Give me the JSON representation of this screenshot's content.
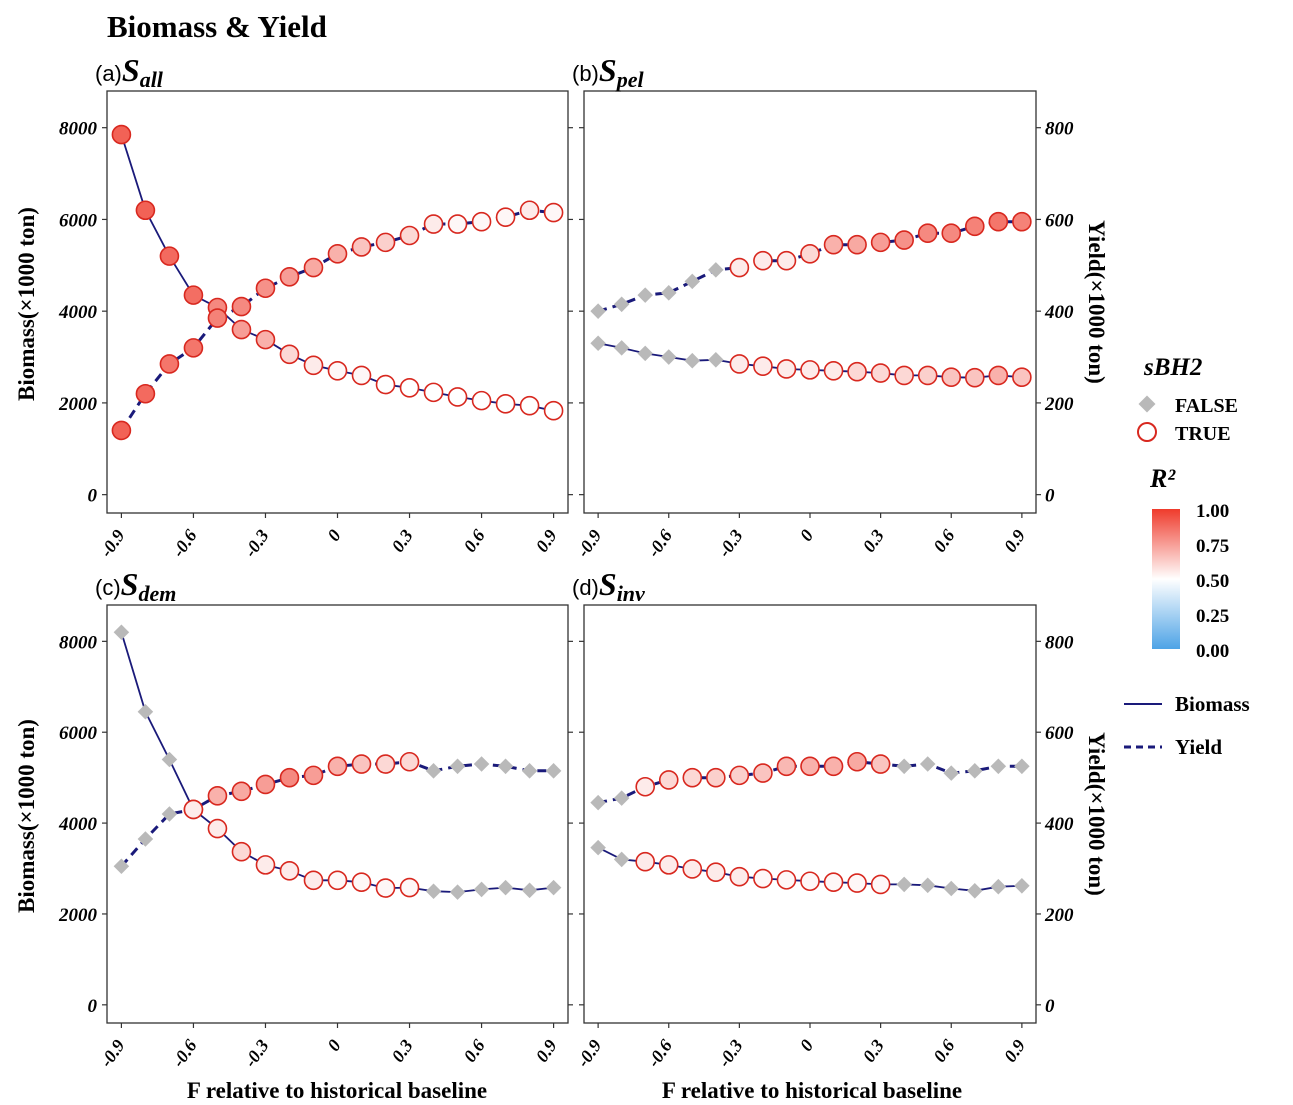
{
  "figure": {
    "title": "Biomass & Yield",
    "xlabel": "F relative to historical baseline",
    "ylabel_left": "Biomass(×1000 ton)",
    "ylabel_right": "Yield(×1000 ton)"
  },
  "legend": {
    "shape_title": "sBH2",
    "shape_items": [
      "FALSE",
      "TRUE"
    ],
    "color_title": "R²",
    "color_ticks": [
      "1.00",
      "0.75",
      "0.50",
      "0.25",
      "0.00"
    ],
    "line_items": [
      "Biomass",
      "Yield"
    ]
  },
  "colors": {
    "line": "#1a1a7a",
    "false_marker": "#b9b9b9",
    "true_edge": "#d8281f",
    "high": "#ef3b2c",
    "mid": "#ffffff",
    "low": "#4da3e6"
  },
  "chart_data": [
    {
      "type": "line",
      "panel_tag": "(a)",
      "panel_symbol": "S",
      "panel_subscript": "all",
      "x": [
        -0.9,
        -0.8,
        -0.7,
        -0.6,
        -0.5,
        -0.4,
        -0.3,
        -0.2,
        -0.1,
        0,
        0.1,
        0.2,
        0.3,
        0.4,
        0.5,
        0.6,
        0.7,
        0.8,
        0.9
      ],
      "x_ticks": [
        "-0.9",
        "-0.6",
        "-0.3",
        "0",
        "0.3",
        "0.6",
        "0.9"
      ],
      "left_axis": {
        "ylim": [
          -400,
          8800
        ],
        "ticks": [
          "0",
          "2000",
          "4000",
          "6000",
          "8000"
        ],
        "show_ticklabels": true
      },
      "right_axis": {
        "ylim": [
          -40,
          880
        ],
        "ticks": [
          "0",
          "200",
          "400",
          "600",
          "800"
        ],
        "show_ticklabels": false
      },
      "series": [
        {
          "name": "Biomass",
          "axis": "left",
          "linestyle": "solid",
          "values": [
            7850,
            6200,
            5200,
            4350,
            4080,
            3600,
            3380,
            3060,
            2820,
            2700,
            2600,
            2400,
            2330,
            2230,
            2130,
            2050,
            1980,
            1940,
            1830
          ],
          "sbh2": [
            true,
            true,
            true,
            true,
            true,
            true,
            true,
            true,
            true,
            true,
            true,
            true,
            true,
            true,
            true,
            true,
            true,
            true,
            true
          ],
          "r2": [
            0.9,
            0.9,
            0.88,
            0.87,
            0.8,
            0.75,
            0.7,
            0.6,
            0.55,
            0.52,
            0.52,
            0.5,
            0.5,
            0.5,
            0.5,
            0.5,
            0.5,
            0.5,
            0.5
          ]
        },
        {
          "name": "Yield",
          "axis": "right",
          "linestyle": "dashed",
          "values": [
            140,
            220,
            285,
            320,
            385,
            410,
            450,
            475,
            495,
            525,
            540,
            550,
            565,
            590,
            590,
            595,
            605,
            620,
            615
          ],
          "sbh2": [
            true,
            true,
            true,
            true,
            true,
            true,
            true,
            true,
            true,
            true,
            true,
            true,
            true,
            true,
            true,
            true,
            true,
            true,
            true
          ],
          "r2": [
            0.9,
            0.88,
            0.85,
            0.85,
            0.82,
            0.8,
            0.78,
            0.75,
            0.72,
            0.7,
            0.65,
            0.62,
            0.6,
            0.55,
            0.52,
            0.52,
            0.52,
            0.55,
            0.52
          ]
        }
      ]
    },
    {
      "type": "line",
      "panel_tag": "(b)",
      "panel_symbol": "S",
      "panel_subscript": "pel",
      "x": [
        -0.9,
        -0.8,
        -0.7,
        -0.6,
        -0.5,
        -0.4,
        -0.3,
        -0.2,
        -0.1,
        0,
        0.1,
        0.2,
        0.3,
        0.4,
        0.5,
        0.6,
        0.7,
        0.8,
        0.9
      ],
      "x_ticks": [
        "-0.9",
        "-0.6",
        "-0.3",
        "0",
        "0.3",
        "0.6",
        "0.9"
      ],
      "left_axis": {
        "ylim": [
          -400,
          8800
        ],
        "ticks": [
          "0",
          "2000",
          "4000",
          "6000",
          "8000"
        ],
        "show_ticklabels": false
      },
      "right_axis": {
        "ylim": [
          -40,
          880
        ],
        "ticks": [
          "0",
          "200",
          "400",
          "600",
          "800"
        ],
        "show_ticklabels": true
      },
      "series": [
        {
          "name": "Biomass",
          "axis": "left",
          "linestyle": "solid",
          "values": [
            3300,
            3200,
            3080,
            3000,
            2920,
            2940,
            2850,
            2800,
            2740,
            2720,
            2700,
            2680,
            2650,
            2600,
            2600,
            2560,
            2550,
            2600,
            2560
          ],
          "sbh2": [
            false,
            false,
            false,
            false,
            false,
            false,
            true,
            true,
            true,
            true,
            true,
            true,
            true,
            true,
            true,
            true,
            true,
            true,
            true
          ],
          "r2": [
            0,
            0,
            0,
            0,
            0,
            0,
            0.55,
            0.55,
            0.55,
            0.55,
            0.55,
            0.6,
            0.6,
            0.6,
            0.62,
            0.65,
            0.65,
            0.7,
            0.65
          ]
        },
        {
          "name": "Yield",
          "axis": "right",
          "linestyle": "dashed",
          "values": [
            400,
            415,
            435,
            440,
            465,
            490,
            495,
            510,
            510,
            525,
            545,
            545,
            550,
            555,
            570,
            570,
            585,
            595,
            595
          ],
          "sbh2": [
            false,
            false,
            false,
            false,
            false,
            false,
            true,
            true,
            true,
            true,
            true,
            true,
            true,
            true,
            true,
            true,
            true,
            true,
            true
          ],
          "r2": [
            0,
            0,
            0,
            0,
            0,
            0,
            0.55,
            0.55,
            0.55,
            0.6,
            0.7,
            0.72,
            0.75,
            0.78,
            0.8,
            0.8,
            0.82,
            0.85,
            0.82
          ]
        }
      ]
    },
    {
      "type": "line",
      "panel_tag": "(c)",
      "panel_symbol": "S",
      "panel_subscript": "dem",
      "x": [
        -0.9,
        -0.8,
        -0.7,
        -0.6,
        -0.5,
        -0.4,
        -0.3,
        -0.2,
        -0.1,
        0,
        0.1,
        0.2,
        0.3,
        0.4,
        0.5,
        0.6,
        0.7,
        0.8,
        0.9
      ],
      "x_ticks": [
        "-0.9",
        "-0.6",
        "-0.3",
        "0",
        "0.3",
        "0.6",
        "0.9"
      ],
      "left_axis": {
        "ylim": [
          -400,
          8800
        ],
        "ticks": [
          "0",
          "2000",
          "4000",
          "6000",
          "8000"
        ],
        "show_ticklabels": true
      },
      "right_axis": {
        "ylim": [
          -40,
          880
        ],
        "ticks": [
          "0",
          "200",
          "400",
          "600",
          "800"
        ],
        "show_ticklabels": false
      },
      "series": [
        {
          "name": "Biomass",
          "axis": "left",
          "linestyle": "solid",
          "values": [
            8200,
            6450,
            5400,
            4300,
            3880,
            3370,
            3080,
            2950,
            2740,
            2740,
            2700,
            2570,
            2580,
            2500,
            2480,
            2540,
            2580,
            2520,
            2580
          ],
          "sbh2": [
            false,
            false,
            false,
            true,
            true,
            true,
            true,
            true,
            true,
            true,
            true,
            true,
            true,
            false,
            false,
            false,
            false,
            false,
            false
          ],
          "r2": [
            0,
            0,
            0,
            0.6,
            0.55,
            0.6,
            0.55,
            0.55,
            0.55,
            0.52,
            0.52,
            0.52,
            0.52,
            0,
            0,
            0,
            0,
            0,
            0
          ]
        },
        {
          "name": "Yield",
          "axis": "right",
          "linestyle": "dashed",
          "values": [
            305,
            365,
            420,
            430,
            460,
            470,
            485,
            500,
            505,
            525,
            530,
            530,
            535,
            515,
            525,
            530,
            525,
            515,
            515
          ],
          "sbh2": [
            false,
            false,
            false,
            true,
            true,
            true,
            true,
            true,
            true,
            true,
            true,
            true,
            true,
            false,
            false,
            false,
            false,
            false,
            false
          ],
          "r2": [
            0,
            0,
            0,
            0.55,
            0.7,
            0.72,
            0.75,
            0.8,
            0.75,
            0.7,
            0.65,
            0.6,
            0.6,
            0,
            0,
            0,
            0,
            0,
            0
          ]
        }
      ]
    },
    {
      "type": "line",
      "panel_tag": "(d)",
      "panel_symbol": "S",
      "panel_subscript": "inv",
      "x": [
        -0.9,
        -0.8,
        -0.7,
        -0.6,
        -0.5,
        -0.4,
        -0.3,
        -0.2,
        -0.1,
        0,
        0.1,
        0.2,
        0.3,
        0.4,
        0.5,
        0.6,
        0.7,
        0.8,
        0.9
      ],
      "x_ticks": [
        "-0.9",
        "-0.6",
        "-0.3",
        "0",
        "0.3",
        "0.6",
        "0.9"
      ],
      "left_axis": {
        "ylim": [
          -400,
          8800
        ],
        "ticks": [
          "0",
          "2000",
          "4000",
          "6000",
          "8000"
        ],
        "show_ticklabels": false
      },
      "right_axis": {
        "ylim": [
          -40,
          880
        ],
        "ticks": [
          "0",
          "200",
          "400",
          "600",
          "800"
        ],
        "show_ticklabels": true
      },
      "series": [
        {
          "name": "Biomass",
          "axis": "left",
          "linestyle": "solid",
          "values": [
            3460,
            3200,
            3150,
            3080,
            2990,
            2920,
            2820,
            2780,
            2750,
            2720,
            2700,
            2680,
            2650,
            2650,
            2630,
            2560,
            2510,
            2600,
            2620
          ],
          "sbh2": [
            false,
            false,
            true,
            true,
            true,
            true,
            true,
            true,
            true,
            true,
            true,
            true,
            true,
            false,
            false,
            false,
            false,
            false,
            false
          ],
          "r2": [
            0,
            0,
            0.55,
            0.55,
            0.55,
            0.55,
            0.55,
            0.52,
            0.52,
            0.52,
            0.52,
            0.52,
            0.52,
            0,
            0,
            0,
            0,
            0,
            0
          ]
        },
        {
          "name": "Yield",
          "axis": "right",
          "linestyle": "dashed",
          "values": [
            445,
            455,
            480,
            495,
            500,
            500,
            505,
            510,
            525,
            525,
            525,
            535,
            530,
            525,
            530,
            510,
            515,
            525,
            525
          ],
          "sbh2": [
            false,
            false,
            true,
            true,
            true,
            true,
            true,
            true,
            true,
            true,
            true,
            true,
            true,
            false,
            false,
            false,
            false,
            false,
            false
          ],
          "r2": [
            0,
            0,
            0.55,
            0.6,
            0.6,
            0.62,
            0.62,
            0.65,
            0.68,
            0.7,
            0.7,
            0.72,
            0.65,
            0,
            0,
            0,
            0,
            0,
            0
          ]
        }
      ]
    }
  ]
}
